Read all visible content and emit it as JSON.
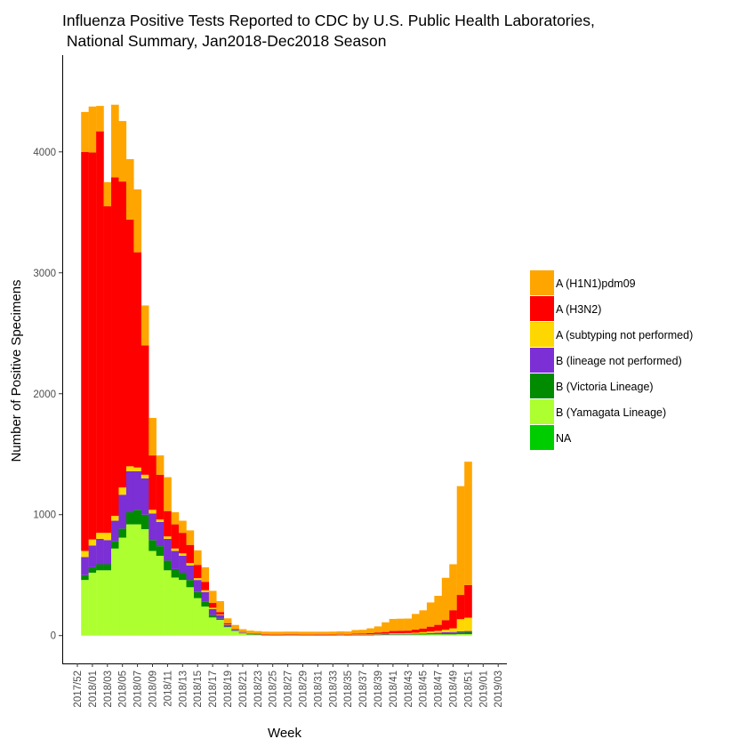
{
  "chart_data": {
    "type": "bar",
    "stacked": true,
    "title": "Influenza Positive Tests Reported to CDC by U.S. Public Health Laboratories,",
    "subtitle": " National Summary, Jan2018-Dec2018 Season",
    "xlabel": "Week",
    "ylabel": "Number of Positive Specimens",
    "ylim": [
      -230,
      4800
    ],
    "yticks": [
      0,
      1000,
      2000,
      3000,
      4000
    ],
    "ytick_labels": [
      "0",
      "1000",
      "2000",
      "3000",
      "4000"
    ],
    "grid": false,
    "legend_position": "right",
    "x_tick_labels": [
      "2017/52",
      "2018/01",
      "2018/03",
      "2018/05",
      "2018/07",
      "2018/09",
      "2018/11",
      "2018/13",
      "2018/15",
      "2018/17",
      "2018/19",
      "2018/21",
      "2018/23",
      "2018/25",
      "2018/27",
      "2018/29",
      "2018/31",
      "2018/33",
      "2018/35",
      "2018/37",
      "2018/39",
      "2018/41",
      "2018/43",
      "2018/45",
      "2018/47",
      "2018/49",
      "2018/51",
      "2019/01",
      "2019/03"
    ],
    "weeks": [
      "2018/01",
      "2018/02",
      "2018/03",
      "2018/04",
      "2018/05",
      "2018/06",
      "2018/07",
      "2018/08",
      "2018/09",
      "2018/10",
      "2018/11",
      "2018/12",
      "2018/13",
      "2018/14",
      "2018/15",
      "2018/16",
      "2018/17",
      "2018/18",
      "2018/19",
      "2018/20",
      "2018/21",
      "2018/22",
      "2018/23",
      "2018/24",
      "2018/25",
      "2018/26",
      "2018/27",
      "2018/28",
      "2018/29",
      "2018/30",
      "2018/31",
      "2018/32",
      "2018/33",
      "2018/34",
      "2018/35",
      "2018/36",
      "2018/37",
      "2018/38",
      "2018/39",
      "2018/40",
      "2018/41",
      "2018/42",
      "2018/43",
      "2018/44",
      "2018/45",
      "2018/46",
      "2018/47",
      "2018/48",
      "2018/49",
      "2018/50",
      "2018/51",
      "2018/52"
    ],
    "series": [
      {
        "name": "B (Yamagata Lineage)",
        "color": "#adff2f",
        "values": [
          460,
          520,
          540,
          540,
          720,
          810,
          920,
          920,
          880,
          700,
          660,
          540,
          480,
          460,
          400,
          310,
          240,
          150,
          130,
          70,
          40,
          20,
          10,
          8,
          5,
          4,
          4,
          5,
          5,
          4,
          4,
          3,
          3,
          4,
          5,
          4,
          5,
          5,
          5,
          6,
          7,
          8,
          8,
          8,
          8,
          9,
          10,
          10,
          10,
          10,
          12,
          12
        ]
      },
      {
        "name": "B (Victoria Lineage)",
        "color": "#008b00",
        "values": [
          40,
          45,
          50,
          50,
          60,
          75,
          100,
          120,
          120,
          90,
          80,
          80,
          70,
          60,
          60,
          50,
          40,
          20,
          10,
          5,
          3,
          2,
          2,
          1,
          1,
          1,
          1,
          1,
          1,
          1,
          1,
          1,
          1,
          1,
          1,
          1,
          1,
          1,
          1,
          2,
          2,
          3,
          3,
          3,
          4,
          5,
          6,
          7,
          10,
          12,
          14,
          16
        ]
      },
      {
        "name": "B (lineage not performed)",
        "color": "#7b2fd4",
        "values": [
          150,
          180,
          210,
          200,
          170,
          280,
          340,
          320,
          300,
          220,
          200,
          180,
          150,
          140,
          120,
          100,
          80,
          50,
          30,
          15,
          8,
          5,
          4,
          3,
          2,
          2,
          2,
          2,
          2,
          2,
          2,
          2,
          2,
          2,
          2,
          2,
          2,
          2,
          2,
          3,
          3,
          4,
          4,
          4,
          4,
          5,
          6,
          7,
          8,
          8,
          10,
          10
        ]
      },
      {
        "name": "A (subtyping not performed)",
        "color": "#ffd700",
        "values": [
          50,
          50,
          50,
          60,
          40,
          60,
          40,
          30,
          30,
          30,
          20,
          20,
          20,
          20,
          20,
          15,
          15,
          10,
          5,
          3,
          2,
          2,
          2,
          2,
          2,
          2,
          2,
          2,
          2,
          2,
          2,
          2,
          2,
          2,
          2,
          2,
          2,
          2,
          2,
          3,
          3,
          5,
          5,
          6,
          8,
          10,
          12,
          15,
          20,
          30,
          100,
          110
        ]
      },
      {
        "name": "A (H3N2)",
        "color": "#ff0000",
        "values": [
          3300,
          3200,
          3320,
          2700,
          2800,
          2530,
          2040,
          1780,
          1070,
          450,
          370,
          210,
          200,
          170,
          150,
          110,
          70,
          40,
          20,
          10,
          5,
          4,
          3,
          3,
          3,
          3,
          3,
          3,
          3,
          3,
          3,
          4,
          4,
          4,
          5,
          5,
          6,
          8,
          10,
          12,
          15,
          18,
          20,
          20,
          25,
          30,
          40,
          50,
          80,
          150,
          200,
          270
        ]
      },
      {
        "name": "A (H1N1)pdm09",
        "color": "#ffa500",
        "values": [
          330,
          380,
          210,
          200,
          600,
          500,
          500,
          520,
          330,
          310,
          160,
          280,
          100,
          100,
          120,
          120,
          120,
          100,
          90,
          40,
          30,
          20,
          20,
          20,
          20,
          20,
          20,
          20,
          20,
          20,
          20,
          20,
          20,
          20,
          20,
          20,
          30,
          30,
          40,
          50,
          80,
          100,
          100,
          100,
          130,
          150,
          200,
          240,
          350,
          380,
          900,
          1020
        ]
      },
      {
        "name": "NA",
        "color": "#00cd00",
        "values": [
          0,
          0,
          0,
          0,
          0,
          0,
          0,
          0,
          0,
          0,
          0,
          0,
          0,
          0,
          0,
          0,
          0,
          0,
          0,
          0,
          0,
          0,
          0,
          0,
          0,
          0,
          0,
          0,
          0,
          0,
          0,
          0,
          0,
          0,
          0,
          0,
          0,
          0,
          0,
          0,
          0,
          0,
          0,
          0,
          0,
          0,
          0,
          0,
          0,
          0,
          0,
          0
        ]
      }
    ],
    "legend": [
      {
        "name": "A (H1N1)pdm09",
        "color": "#ffa500"
      },
      {
        "name": "A (H3N2)",
        "color": "#ff0000"
      },
      {
        "name": "A (subtyping not performed)",
        "color": "#ffd700"
      },
      {
        "name": "B (lineage not performed)",
        "color": "#7b2fd4"
      },
      {
        "name": "B (Victoria Lineage)",
        "color": "#008b00"
      },
      {
        "name": "B (Yamagata Lineage)",
        "color": "#adff2f"
      },
      {
        "name": "NA",
        "color": "#00cd00"
      }
    ]
  }
}
